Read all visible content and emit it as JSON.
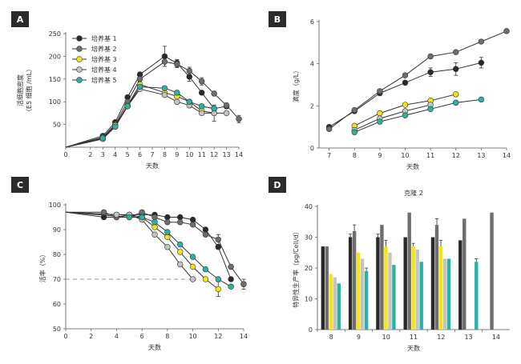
{
  "chart_data": [
    {
      "panel": "A",
      "type": "line",
      "xlabel": "天数",
      "ylabel": "活细胞密度",
      "ylabel_sub": "（E5 细胞 /mL）",
      "xlim": [
        0,
        14
      ],
      "ylim": [
        0,
        250
      ],
      "xticks": [
        0,
        2,
        3,
        4,
        5,
        6,
        7,
        8,
        9,
        10,
        11,
        12,
        13,
        14
      ],
      "yticks": [
        50,
        100,
        150,
        200,
        250
      ],
      "legend": "top-left",
      "series": [
        {
          "name": "培养基 1",
          "color": "#2a2a2a",
          "x": [
            0,
            3,
            4,
            5,
            6,
            8,
            9,
            10,
            11,
            12,
            13
          ],
          "y": [
            0,
            25,
            55,
            110,
            160,
            200,
            185,
            155,
            120,
            85,
            90
          ],
          "err": [
            0,
            0,
            0,
            0,
            5,
            22,
            8,
            10,
            0,
            0,
            5
          ]
        },
        {
          "name": "培养基 2",
          "color": "#6e6e6e",
          "x": [
            0,
            3,
            4,
            5,
            6,
            8,
            9,
            10,
            11,
            12,
            13,
            14
          ],
          "y": [
            0,
            22,
            50,
            100,
            150,
            188,
            183,
            168,
            145,
            118,
            92,
            62
          ],
          "err": [
            0,
            0,
            0,
            0,
            5,
            10,
            8,
            8,
            8,
            5,
            5,
            8
          ]
        },
        {
          "name": "培养基 3",
          "color": "#f4e516",
          "x": [
            0,
            3,
            4,
            5,
            6,
            8,
            9,
            10,
            11,
            12
          ],
          "y": [
            0,
            20,
            48,
            92,
            138,
            120,
            112,
            100,
            80,
            75
          ],
          "err": [
            0,
            0,
            0,
            0,
            0,
            0,
            0,
            0,
            0,
            0
          ]
        },
        {
          "name": "培养基 4",
          "color": "#c4c4c4",
          "x": [
            0,
            3,
            4,
            5,
            6,
            8,
            9,
            10,
            11,
            12,
            13
          ],
          "y": [
            0,
            18,
            45,
            90,
            128,
            115,
            100,
            92,
            75,
            75,
            75
          ],
          "err": [
            0,
            0,
            0,
            0,
            0,
            0,
            0,
            0,
            0,
            18,
            0
          ]
        },
        {
          "name": "培养基 5",
          "color": "#2cb1a5",
          "x": [
            0,
            3,
            4,
            5,
            6,
            8,
            9,
            10,
            11,
            12
          ],
          "y": [
            0,
            20,
            45,
            90,
            133,
            130,
            120,
            100,
            90,
            85
          ],
          "err": [
            0,
            0,
            0,
            0,
            0,
            0,
            0,
            0,
            0,
            0
          ]
        }
      ]
    },
    {
      "panel": "B",
      "type": "line",
      "xlabel": "天数",
      "ylabel": "滴度（g/L）",
      "xlim": [
        6.6,
        14
      ],
      "ylim": [
        0,
        6
      ],
      "xticks": [
        7,
        8,
        9,
        10,
        11,
        12,
        13,
        14
      ],
      "yticks": [
        0,
        2,
        4,
        6
      ],
      "series": [
        {
          "name": "培养基 1",
          "color": "#2a2a2a",
          "x": [
            7,
            8,
            9,
            10,
            11,
            12,
            13
          ],
          "y": [
            1.0,
            1.75,
            2.6,
            3.1,
            3.6,
            3.75,
            4.05
          ],
          "err": [
            0,
            0,
            0,
            0,
            0.2,
            0.3,
            0.25
          ]
        },
        {
          "name": "培养基 2",
          "color": "#6e6e6e",
          "x": [
            7,
            8,
            9,
            10,
            11,
            12,
            13,
            14
          ],
          "y": [
            0.9,
            1.8,
            2.7,
            3.45,
            4.35,
            4.55,
            5.05,
            5.55
          ],
          "err": [
            0,
            0,
            0,
            0,
            0,
            0,
            0,
            0
          ]
        },
        {
          "name": "培养基 3",
          "color": "#f4e516",
          "x": [
            8,
            9,
            10,
            11,
            12
          ],
          "y": [
            1.05,
            1.65,
            2.05,
            2.25,
            2.55
          ],
          "err": [
            0,
            0,
            0,
            0,
            0
          ]
        },
        {
          "name": "培养基 4",
          "color": "#c4c4c4",
          "x": [
            8,
            9,
            10,
            11
          ],
          "y": [
            0.85,
            1.4,
            1.75,
            2.05
          ],
          "err": [
            0,
            0,
            0,
            0
          ]
        },
        {
          "name": "培养基 5",
          "color": "#2cb1a5",
          "x": [
            8,
            9,
            10,
            11,
            12,
            13
          ],
          "y": [
            0.75,
            1.25,
            1.55,
            1.85,
            2.15,
            2.3
          ],
          "err": [
            0,
            0,
            0,
            0,
            0,
            0
          ]
        }
      ]
    },
    {
      "panel": "C",
      "type": "line",
      "xlabel": "天数",
      "ylabel": "活率（%）",
      "xlim": [
        0,
        14
      ],
      "ylim": [
        50,
        100
      ],
      "xticks": [
        0,
        2,
        4,
        6,
        8,
        10,
        12,
        14
      ],
      "yticks": [
        50,
        60,
        70,
        80,
        90,
        100
      ],
      "reference_line": 70,
      "series": [
        {
          "name": "培养基 1",
          "color": "#2a2a2a",
          "x": [
            0,
            3,
            4,
            5,
            6,
            7,
            8,
            9,
            10,
            11,
            12,
            13
          ],
          "y": [
            97,
            95,
            95,
            96,
            96,
            96,
            95,
            95,
            94,
            90,
            83,
            70
          ],
          "err": [
            0,
            0,
            0,
            0,
            0,
            0,
            0,
            0,
            0,
            0,
            0,
            0
          ]
        },
        {
          "name": "培养基 2",
          "color": "#6e6e6e",
          "x": [
            0,
            3,
            4,
            5,
            6,
            7,
            8,
            9,
            10,
            11,
            12,
            13,
            14
          ],
          "y": [
            97,
            97,
            95,
            95,
            97,
            95,
            93,
            93,
            92,
            88,
            86,
            75,
            68
          ],
          "err": [
            0,
            0,
            0,
            0,
            0,
            0,
            0,
            0,
            0,
            0,
            2,
            0,
            2
          ]
        },
        {
          "name": "培养基 3",
          "color": "#f4e516",
          "x": [
            0,
            4,
            5,
            6,
            7,
            8,
            9,
            10,
            11,
            12
          ],
          "y": [
            97,
            96,
            96,
            95,
            91,
            87,
            81,
            75,
            70,
            66
          ],
          "err": [
            0,
            0,
            0,
            0,
            0,
            0,
            0,
            0,
            0,
            3
          ]
        },
        {
          "name": "培养基 4",
          "color": "#c4c4c4",
          "x": [
            0,
            4,
            5,
            6,
            7,
            8,
            9,
            10
          ],
          "y": [
            97,
            96,
            96,
            94,
            88,
            83,
            76,
            70
          ],
          "err": [
            0,
            0,
            0,
            0,
            0,
            0,
            0,
            0
          ]
        },
        {
          "name": "培养基 5",
          "color": "#2cb1a5",
          "x": [
            0,
            5,
            6,
            7,
            8,
            9,
            10,
            11,
            12,
            13
          ],
          "y": [
            97,
            95,
            95,
            93,
            89,
            84,
            79,
            74,
            70,
            67
          ],
          "err": [
            0,
            0,
            0,
            0,
            0,
            0,
            0,
            0,
            0,
            0
          ]
        }
      ]
    },
    {
      "panel": "D",
      "type": "bar",
      "title": "克隆 2",
      "xlabel": "天数",
      "ylabel": "特异性生产率（pg/Cell/d）",
      "categories": [
        "8",
        "9",
        "10",
        "11",
        "12",
        "13",
        "14"
      ],
      "ylim": [
        0,
        40
      ],
      "yticks": [
        0,
        10,
        20,
        30,
        40
      ],
      "series": [
        {
          "name": "培养基 1",
          "color": "#2a2a2a",
          "values": [
            27,
            30,
            30,
            30,
            30,
            29,
            null
          ],
          "err": [
            0,
            1,
            1,
            0,
            0,
            0,
            0
          ]
        },
        {
          "name": "培养基 2",
          "color": "#6e6e6e",
          "values": [
            27,
            32,
            34,
            38,
            34,
            36,
            38
          ],
          "err": [
            0,
            2,
            0,
            0,
            2,
            0,
            0
          ]
        },
        {
          "name": "培养基 3",
          "color": "#f4e516",
          "values": [
            18,
            25,
            27,
            27,
            27,
            null,
            null
          ],
          "err": [
            0,
            0,
            2,
            1,
            2,
            0,
            0
          ]
        },
        {
          "name": "培养基 4",
          "color": "#c4c4c4",
          "values": [
            17,
            23,
            25,
            26,
            23,
            null,
            null
          ],
          "err": [
            0,
            0,
            0,
            0,
            0,
            0,
            0
          ]
        },
        {
          "name": "培养基 5",
          "color": "#2cb1a5",
          "values": [
            15,
            19,
            21,
            22,
            23,
            22,
            null
          ],
          "err": [
            0,
            1,
            0,
            0,
            0,
            1,
            0
          ]
        }
      ]
    }
  ]
}
